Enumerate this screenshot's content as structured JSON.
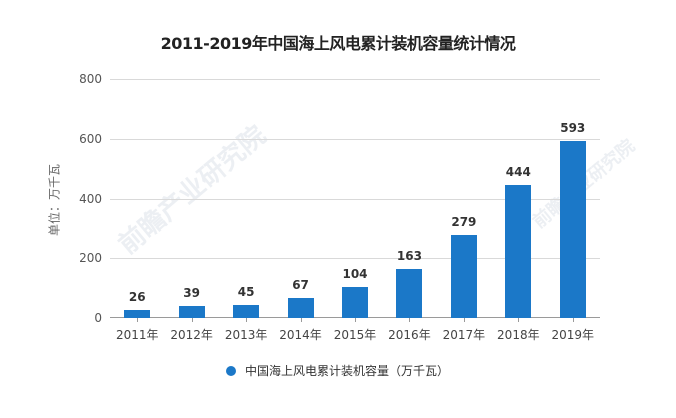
{
  "chart_data": {
    "type": "bar",
    "title": "2011-2019年中国海上风电累计装机容量统计情况",
    "xlabel": "",
    "ylabel": "单位：万千瓦",
    "ylim": [
      0,
      800
    ],
    "yticks": [
      0,
      200,
      400,
      600,
      800
    ],
    "grid": true,
    "legend_position": "bottom",
    "categories": [
      "2011年",
      "2012年",
      "2013年",
      "2014年",
      "2015年",
      "2016年",
      "2017年",
      "2018年",
      "2019年"
    ],
    "series": [
      {
        "name": "中国海上风电累计装机容量（万千瓦）",
        "color": "#1b78c8",
        "values": [
          26,
          39,
          45,
          67,
          104,
          163,
          279,
          444,
          593
        ]
      }
    ]
  },
  "watermark": "前瞻产业研究院"
}
